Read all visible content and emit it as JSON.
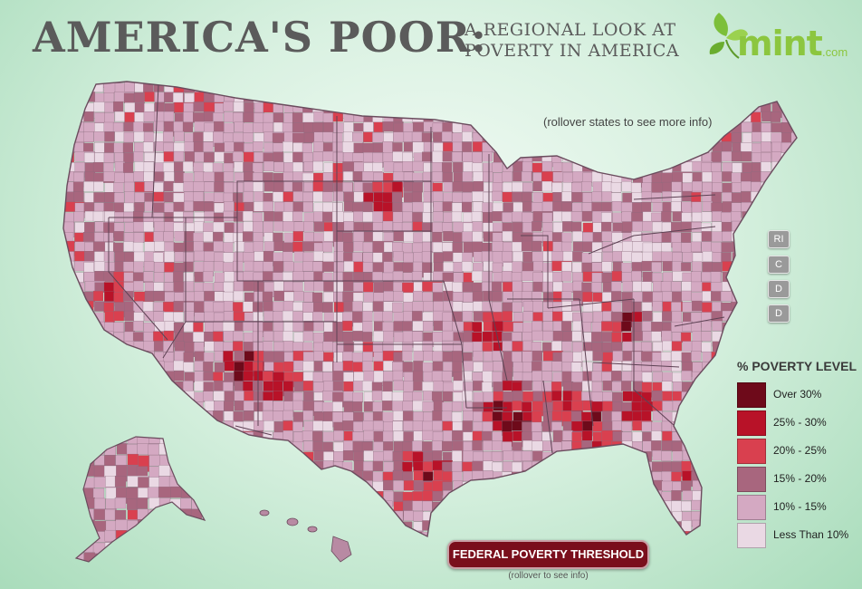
{
  "header": {
    "title": "AMERICA'S POOR:",
    "subtitle_line1": "A REGIONAL LOOK AT",
    "subtitle_line2": "POVERTY IN AMERICA"
  },
  "logo": {
    "word": "mint",
    "suffix": ".com",
    "color": "#8cc63f"
  },
  "map": {
    "rollover_note": "(rollover states to see more info)",
    "state_buttons": [
      {
        "label": "RI"
      },
      {
        "label": "C"
      },
      {
        "label": "D"
      },
      {
        "label": "D"
      }
    ]
  },
  "legend": {
    "title": "% POVERTY LEVEL",
    "items": [
      {
        "label": "Over 30%",
        "color": "#6e0a1a"
      },
      {
        "label": "25% - 30%",
        "color": "#b81228"
      },
      {
        "label": "20% - 25%",
        "color": "#d9404f"
      },
      {
        "label": "15% - 20%",
        "color": "#a8667e"
      },
      {
        "label": "10% - 15%",
        "color": "#d4a9c2"
      },
      {
        "label": "Less Than 10%",
        "color": "#ead9e4"
      }
    ]
  },
  "poverty_threshold": {
    "button_label": "FEDERAL POVERTY THRESHOLD",
    "note": "(rollover to see info)"
  }
}
